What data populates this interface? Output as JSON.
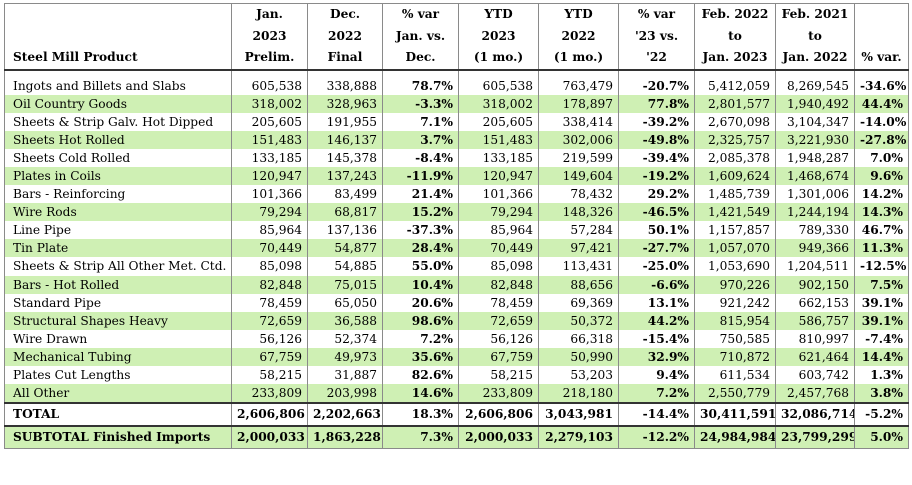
{
  "header": {
    "product": "Steel Mill Product",
    "cols": [
      [
        "Jan.",
        "2023",
        "Prelim."
      ],
      [
        "Dec.",
        "2022",
        "Final"
      ],
      [
        "% var",
        "Jan. vs.",
        "Dec."
      ],
      [
        "YTD",
        "2023",
        "(1 mo.)"
      ],
      [
        "YTD",
        "2022",
        "(1 mo.)"
      ],
      [
        "% var",
        "'23 vs.",
        "'22"
      ],
      [
        "Feb. 2022",
        "to",
        "Jan. 2023"
      ],
      [
        "Feb. 2021",
        "to",
        "Jan. 2022"
      ],
      [
        "",
        "",
        "% var."
      ]
    ]
  },
  "rows": [
    [
      "Ingots and Billets and Slabs",
      "605,538",
      "338,888",
      "78.7%",
      "605,538",
      "763,479",
      "-20.7%",
      "5,412,059",
      "8,269,545",
      "-34.6%"
    ],
    [
      "Oil Country Goods",
      "318,002",
      "328,963",
      "-3.3%",
      "318,002",
      "178,897",
      "77.8%",
      "2,801,577",
      "1,940,492",
      "44.4%"
    ],
    [
      "Sheets & Strip Galv. Hot Dipped",
      "205,605",
      "191,955",
      "7.1%",
      "205,605",
      "338,414",
      "-39.2%",
      "2,670,098",
      "3,104,347",
      "-14.0%"
    ],
    [
      "Sheets Hot Rolled",
      "151,483",
      "146,137",
      "3.7%",
      "151,483",
      "302,006",
      "-49.8%",
      "2,325,757",
      "3,221,930",
      "-27.8%"
    ],
    [
      "Sheets Cold Rolled",
      "133,185",
      "145,378",
      "-8.4%",
      "133,185",
      "219,599",
      "-39.4%",
      "2,085,378",
      "1,948,287",
      "7.0%"
    ],
    [
      "Plates in Coils",
      "120,947",
      "137,243",
      "-11.9%",
      "120,947",
      "149,604",
      "-19.2%",
      "1,609,624",
      "1,468,674",
      "9.6%"
    ],
    [
      "Bars - Reinforcing",
      "101,366",
      "83,499",
      "21.4%",
      "101,366",
      "78,432",
      "29.2%",
      "1,485,739",
      "1,301,006",
      "14.2%"
    ],
    [
      "Wire Rods",
      "79,294",
      "68,817",
      "15.2%",
      "79,294",
      "148,326",
      "-46.5%",
      "1,421,549",
      "1,244,194",
      "14.3%"
    ],
    [
      "Line Pipe",
      "85,964",
      "137,136",
      "-37.3%",
      "85,964",
      "57,284",
      "50.1%",
      "1,157,857",
      "789,330",
      "46.7%"
    ],
    [
      "Tin Plate",
      "70,449",
      "54,877",
      "28.4%",
      "70,449",
      "97,421",
      "-27.7%",
      "1,057,070",
      "949,366",
      "11.3%"
    ],
    [
      "Sheets & Strip All Other Met. Ctd.",
      "85,098",
      "54,885",
      "55.0%",
      "85,098",
      "113,431",
      "-25.0%",
      "1,053,690",
      "1,204,511",
      "-12.5%"
    ],
    [
      "Bars - Hot Rolled",
      "82,848",
      "75,015",
      "10.4%",
      "82,848",
      "88,656",
      "-6.6%",
      "970,226",
      "902,150",
      "7.5%"
    ],
    [
      "Standard Pipe",
      "78,459",
      "65,050",
      "20.6%",
      "78,459",
      "69,369",
      "13.1%",
      "921,242",
      "662,153",
      "39.1%"
    ],
    [
      "Structural Shapes Heavy",
      "72,659",
      "36,588",
      "98.6%",
      "72,659",
      "50,372",
      "44.2%",
      "815,954",
      "586,757",
      "39.1%"
    ],
    [
      "Wire Drawn",
      "56,126",
      "52,374",
      "7.2%",
      "56,126",
      "66,318",
      "-15.4%",
      "750,585",
      "810,997",
      "-7.4%"
    ],
    [
      "Mechanical Tubing",
      "67,759",
      "49,973",
      "35.6%",
      "67,759",
      "50,990",
      "32.9%",
      "710,872",
      "621,464",
      "14.4%"
    ],
    [
      "Plates Cut Lengths",
      "58,215",
      "31,887",
      "82.6%",
      "58,215",
      "53,203",
      "9.4%",
      "611,534",
      "603,742",
      "1.3%"
    ],
    [
      "All Other",
      "233,809",
      "203,998",
      "14.6%",
      "233,809",
      "218,180",
      "7.2%",
      "2,550,779",
      "2,457,768",
      "3.8%"
    ]
  ],
  "total": [
    "TOTAL",
    "2,606,806",
    "2,202,663",
    "18.3%",
    "2,606,806",
    "3,043,981",
    "-14.4%",
    "30,411,591",
    "32,086,714",
    "-5.2%"
  ],
  "subtotal": [
    "SUBTOTAL   Finished Imports",
    "2,000,033",
    "1,863,228",
    "7.3%",
    "2,000,033",
    "2,279,103",
    "-12.2%",
    "24,984,984",
    "23,799,299",
    "5.0%"
  ]
}
